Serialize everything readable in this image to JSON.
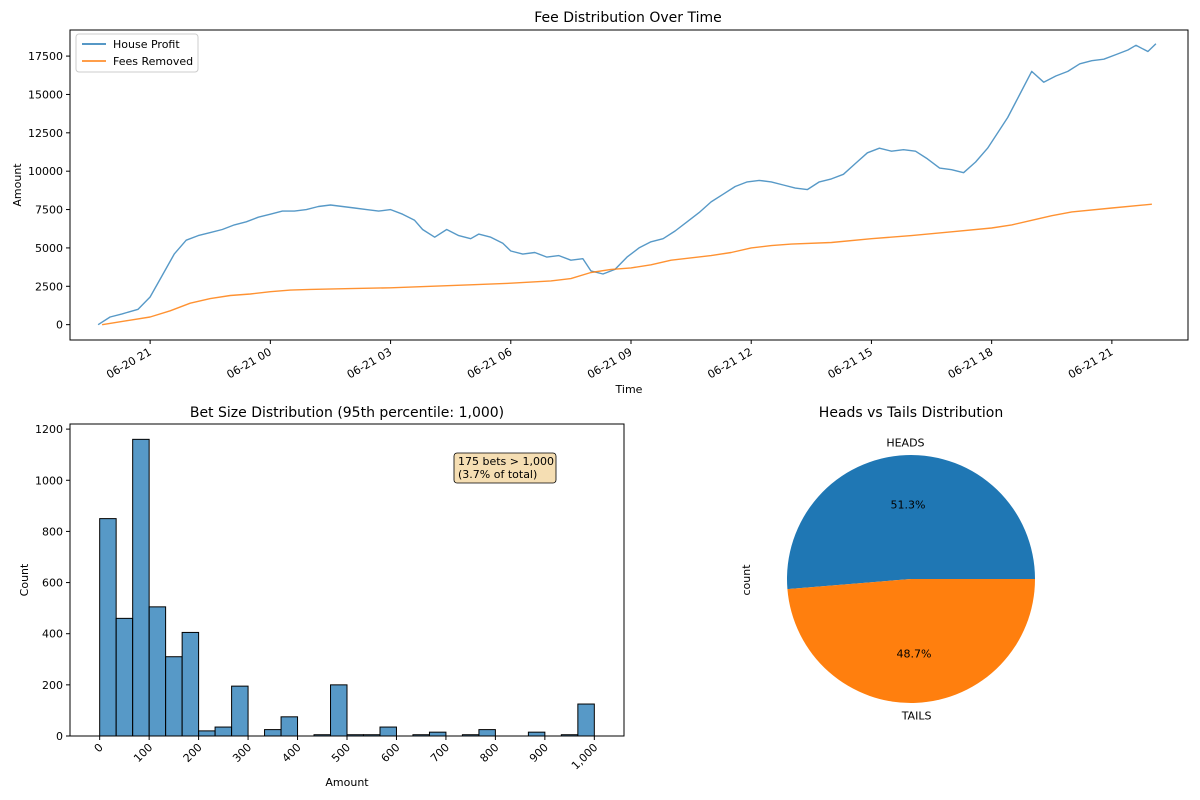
{
  "chart_data": [
    {
      "type": "line",
      "title": "Fee Distribution Over Time",
      "xlabel": "Time",
      "ylabel": "Amount",
      "xlim": [
        "06-20 19:00",
        "06-21 22:00"
      ],
      "ylim": [
        -1000,
        19200
      ],
      "x_tick_labels": [
        "06-20 21",
        "06-21 00",
        "06-21 03",
        "06-21 06",
        "06-21 09",
        "06-21 12",
        "06-21 15",
        "06-21 18",
        "06-21 21"
      ],
      "x_ticks_hours": [
        21,
        24,
        27,
        30,
        33,
        36,
        39,
        42,
        45
      ],
      "y_ticks": [
        0,
        2500,
        5000,
        7500,
        10000,
        12500,
        15000,
        17500
      ],
      "y_tick_labels": [
        "0",
        "2500",
        "5000",
        "7500",
        "10000",
        "12500",
        "15000",
        "17500"
      ],
      "legend": "top-left",
      "series": [
        {
          "name": "House Profit",
          "color": "#1f77b4",
          "x_hours": [
            19.7,
            20.0,
            20.3,
            20.7,
            21.0,
            21.3,
            21.6,
            21.9,
            22.2,
            22.5,
            22.8,
            23.1,
            23.4,
            23.7,
            24.0,
            24.3,
            24.6,
            24.9,
            25.2,
            25.5,
            25.8,
            26.1,
            26.4,
            26.7,
            27.0,
            27.3,
            27.6,
            27.8,
            28.1,
            28.4,
            28.7,
            29.0,
            29.2,
            29.5,
            29.8,
            30.0,
            30.3,
            30.6,
            30.9,
            31.2,
            31.5,
            31.8,
            32.0,
            32.3,
            32.6,
            32.9,
            33.2,
            33.5,
            33.8,
            34.1,
            34.4,
            34.7,
            35.0,
            35.3,
            35.6,
            35.9,
            36.2,
            36.5,
            36.8,
            37.1,
            37.4,
            37.7,
            38.0,
            38.3,
            38.6,
            38.9,
            39.2,
            39.5,
            39.8,
            40.1,
            40.4,
            40.7,
            41.0,
            41.3,
            41.6,
            41.9,
            42.1,
            42.4,
            42.7,
            43.0,
            43.3,
            43.6,
            43.9,
            44.2,
            44.5,
            44.8,
            45.1,
            45.4,
            45.6,
            45.9,
            46.1
          ],
          "values": [
            0,
            500,
            700,
            1000,
            1800,
            3200,
            4600,
            5500,
            5800,
            6000,
            6200,
            6500,
            6700,
            7000,
            7200,
            7400,
            7400,
            7500,
            7700,
            7800,
            7700,
            7600,
            7500,
            7400,
            7500,
            7200,
            6800,
            6200,
            5700,
            6200,
            5800,
            5600,
            5900,
            5700,
            5300,
            4800,
            4600,
            4700,
            4400,
            4500,
            4200,
            4300,
            3500,
            3300,
            3600,
            4400,
            5000,
            5400,
            5600,
            6100,
            6700,
            7300,
            8000,
            8500,
            9000,
            9300,
            9400,
            9300,
            9100,
            8900,
            8800,
            9300,
            9500,
            9800,
            10500,
            11200,
            11500,
            11300,
            11400,
            11300,
            10800,
            10200,
            10100,
            9900,
            10600,
            11500,
            12300,
            13500,
            15000,
            16500,
            15800,
            16200,
            16500,
            17000,
            17200,
            17300,
            17600,
            17900,
            18200,
            17800,
            18300
          ]
        },
        {
          "name": "Fees Removed",
          "color": "#ff7f0e",
          "x_hours": [
            19.8,
            20.4,
            21.0,
            21.5,
            22.0,
            22.5,
            23.0,
            23.5,
            24.0,
            24.5,
            25.0,
            26.0,
            27.0,
            28.0,
            29.0,
            30.0,
            31.0,
            31.5,
            32.0,
            32.5,
            33.0,
            33.5,
            34.0,
            35.0,
            35.5,
            36.0,
            36.5,
            37.0,
            38.0,
            39.0,
            40.0,
            41.0,
            42.0,
            42.5,
            43.0,
            43.5,
            44.0,
            45.0,
            46.0
          ],
          "values": [
            0,
            250,
            500,
            900,
            1400,
            1700,
            1900,
            2000,
            2150,
            2250,
            2300,
            2350,
            2400,
            2500,
            2600,
            2700,
            2850,
            3000,
            3400,
            3600,
            3700,
            3900,
            4200,
            4500,
            4700,
            5000,
            5150,
            5250,
            5350,
            5600,
            5800,
            6050,
            6300,
            6500,
            6800,
            7100,
            7350,
            7600,
            7850
          ]
        }
      ]
    },
    {
      "type": "bar",
      "title": "Bet Size Distribution (95th percentile: 1,000)",
      "xlabel": "Amount",
      "ylabel": "Count",
      "xlim": [
        -60,
        1060
      ],
      "ylim": [
        0,
        1220
      ],
      "bin_width": 33.3,
      "bin_starts": [
        0,
        33.3,
        66.7,
        100,
        133.3,
        166.7,
        200,
        233.3,
        266.7,
        300,
        333.3,
        366.7,
        400,
        433.3,
        466.7,
        500,
        533.3,
        566.7,
        600,
        633.3,
        666.7,
        700,
        733.3,
        766.7,
        800,
        833.3,
        866.7,
        900,
        933.3,
        966.7
      ],
      "values": [
        850,
        460,
        1160,
        505,
        310,
        405,
        20,
        35,
        195,
        0,
        25,
        75,
        0,
        5,
        200,
        5,
        5,
        35,
        0,
        5,
        15,
        0,
        5,
        25,
        0,
        0,
        15,
        0,
        5,
        125
      ],
      "x_ticks": [
        0,
        100,
        200,
        300,
        400,
        500,
        600,
        700,
        800,
        900,
        1000
      ],
      "x_tick_labels": [
        "0",
        "100",
        "200",
        "300",
        "400",
        "500",
        "600",
        "700",
        "800",
        "900",
        "1,000"
      ],
      "y_ticks": [
        0,
        200,
        400,
        600,
        800,
        1000,
        1200
      ],
      "y_tick_labels": [
        "0",
        "200",
        "400",
        "600",
        "800",
        "1000",
        "1200"
      ],
      "color": "#1f77b4",
      "annotation": {
        "line1": "175 bets > 1,000",
        "line2": "(3.7% of total)"
      }
    },
    {
      "type": "pie",
      "title": "Heads vs Tails Distribution",
      "ylabel": "count",
      "labels": [
        "HEADS",
        "TAILS"
      ],
      "values": [
        51.3,
        48.7
      ],
      "pct_labels": [
        "51.3%",
        "48.7%"
      ],
      "colors": [
        "#1f77b4",
        "#ff7f0e"
      ]
    }
  ]
}
